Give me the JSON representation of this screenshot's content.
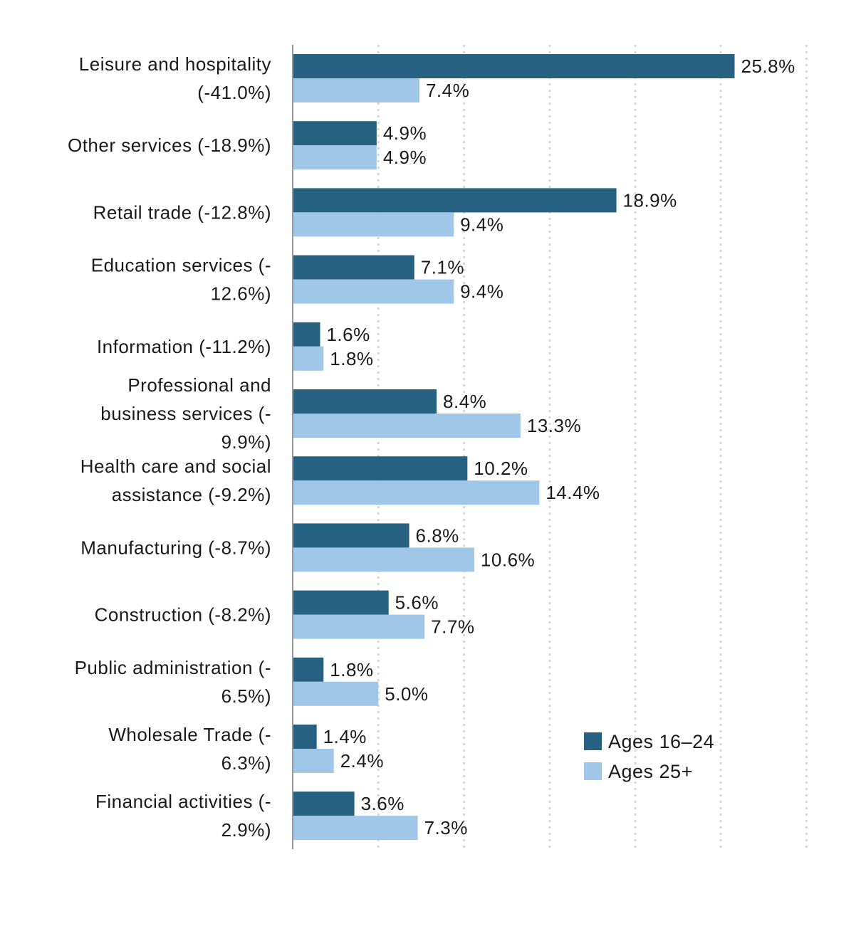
{
  "chart_data": {
    "type": "bar",
    "orientation": "horizontal",
    "title": "",
    "xlabel": "",
    "ylabel": "",
    "xlim": [
      0,
      30
    ],
    "grid": true,
    "legend_position": "bottom-right",
    "categories": [
      "Leisure and hospitality (-41.0%)",
      "Other services (-18.9%)",
      "Retail trade (-12.8%)",
      "Education services (-12.6%)",
      "Information (-11.2%)",
      "Professional and business services (-9.9%)",
      "Health care and social assistance (-9.2%)",
      "Manufacturing (-8.7%)",
      "Construction (-8.2%)",
      "Public administration (-6.5%)",
      "Wholesale Trade (-6.3%)",
      "Financial activities (-2.9%)"
    ],
    "category_label_lines": [
      [
        "Leisure and hospitality",
        "(-41.0%)"
      ],
      [
        "Other services (-18.9%)"
      ],
      [
        "Retail trade (-12.8%)"
      ],
      [
        "Education services (-",
        "12.6%)"
      ],
      [
        "Information (-11.2%)"
      ],
      [
        "Professional and",
        "business services (-",
        "9.9%)"
      ],
      [
        "Health care and social",
        "assistance (-9.2%)"
      ],
      [
        "Manufacturing (-8.7%)"
      ],
      [
        "Construction (-8.2%)"
      ],
      [
        "Public administration (-",
        "6.5%)"
      ],
      [
        "Wholesale Trade (-",
        "6.3%)"
      ],
      [
        "Financial activities (-",
        "2.9%)"
      ]
    ],
    "series": [
      {
        "name": "Ages 16–24",
        "color": "#266182",
        "values": [
          25.8,
          4.9,
          18.9,
          7.1,
          1.6,
          8.4,
          10.2,
          6.8,
          5.6,
          1.8,
          1.4,
          3.6
        ],
        "labels": [
          "25.8%",
          "4.9%",
          "18.9%",
          "7.1%",
          "1.6%",
          "8.4%",
          "10.2%",
          "6.8%",
          "5.6%",
          "1.8%",
          "1.4%",
          "3.6%"
        ]
      },
      {
        "name": "Ages 25+",
        "color": "#a1c7e8",
        "values": [
          7.4,
          4.9,
          9.4,
          9.4,
          1.8,
          13.3,
          14.4,
          10.6,
          7.7,
          5.0,
          2.4,
          7.3
        ],
        "labels": [
          "7.4%",
          "4.9%",
          "9.4%",
          "9.4%",
          "1.8%",
          "13.3%",
          "14.4%",
          "10.6%",
          "7.7%",
          "5.0%",
          "2.4%",
          "7.3%"
        ]
      }
    ]
  }
}
